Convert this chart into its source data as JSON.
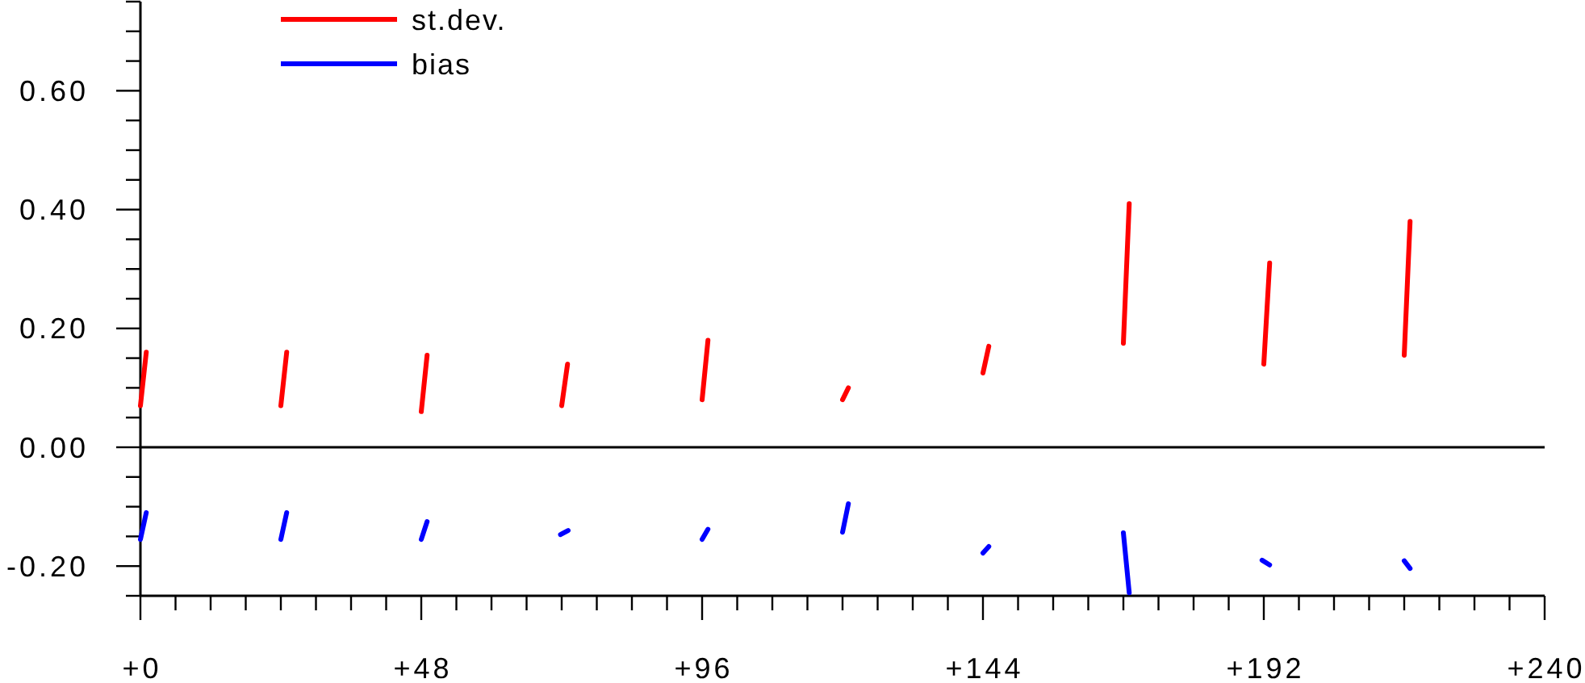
{
  "chart_data": {
    "type": "line",
    "xlim": [
      0,
      240
    ],
    "xticks": [
      {
        "value": 0,
        "label": "+0"
      },
      {
        "value": 6,
        "label": null
      },
      {
        "value": 12,
        "label": null
      },
      {
        "value": 18,
        "label": null
      },
      {
        "value": 24,
        "label": null
      },
      {
        "value": 30,
        "label": null
      },
      {
        "value": 36,
        "label": null
      },
      {
        "value": 42,
        "label": null
      },
      {
        "value": 48,
        "label": "+48"
      },
      {
        "value": 54,
        "label": null
      },
      {
        "value": 60,
        "label": null
      },
      {
        "value": 66,
        "label": null
      },
      {
        "value": 72,
        "label": null
      },
      {
        "value": 78,
        "label": null
      },
      {
        "value": 84,
        "label": null
      },
      {
        "value": 90,
        "label": null
      },
      {
        "value": 96,
        "label": "+96"
      },
      {
        "value": 102,
        "label": null
      },
      {
        "value": 108,
        "label": null
      },
      {
        "value": 114,
        "label": null
      },
      {
        "value": 120,
        "label": null
      },
      {
        "value": 126,
        "label": null
      },
      {
        "value": 132,
        "label": null
      },
      {
        "value": 138,
        "label": null
      },
      {
        "value": 144,
        "label": "+144"
      },
      {
        "value": 150,
        "label": null
      },
      {
        "value": 156,
        "label": null
      },
      {
        "value": 162,
        "label": null
      },
      {
        "value": 168,
        "label": null
      },
      {
        "value": 174,
        "label": null
      },
      {
        "value": 180,
        "label": null
      },
      {
        "value": 186,
        "label": null
      },
      {
        "value": 192,
        "label": "+192"
      },
      {
        "value": 198,
        "label": null
      },
      {
        "value": 204,
        "label": null
      },
      {
        "value": 210,
        "label": null
      },
      {
        "value": 216,
        "label": null
      },
      {
        "value": 222,
        "label": null
      },
      {
        "value": 228,
        "label": null
      },
      {
        "value": 234,
        "label": null
      },
      {
        "value": 240,
        "label": "+240"
      }
    ],
    "ylim": [
      -0.25,
      0.75
    ],
    "yticks": [
      {
        "value": -0.25,
        "label": null
      },
      {
        "value": -0.2,
        "label": "-0.20"
      },
      {
        "value": -0.15,
        "label": null
      },
      {
        "value": -0.1,
        "label": null
      },
      {
        "value": -0.05,
        "label": null
      },
      {
        "value": 0,
        "label": "0.00"
      },
      {
        "value": 0.05,
        "label": null
      },
      {
        "value": 0.1,
        "label": null
      },
      {
        "value": 0.15,
        "label": null
      },
      {
        "value": 0.2,
        "label": "0.20"
      },
      {
        "value": 0.25,
        "label": null
      },
      {
        "value": 0.3,
        "label": null
      },
      {
        "value": 0.35,
        "label": null
      },
      {
        "value": 0.4,
        "label": "0.40"
      },
      {
        "value": 0.45,
        "label": null
      },
      {
        "value": 0.5,
        "label": null
      },
      {
        "value": 0.55,
        "label": null
      },
      {
        "value": 0.6,
        "label": "0.60"
      },
      {
        "value": 0.65,
        "label": null
      },
      {
        "value": 0.7,
        "label": null
      },
      {
        "value": 0.75,
        "label": null
      }
    ],
    "legend": "top left",
    "ref_lines": [
      {
        "axis": "y",
        "value": 0,
        "color": "#000000"
      }
    ],
    "series": [
      {
        "name": "st.dev.",
        "color": "#ff0000",
        "x": [
          0,
          1,
          12,
          24,
          25,
          36,
          48,
          49,
          60,
          72,
          73,
          84,
          96,
          97,
          108,
          120,
          121,
          132,
          144,
          145,
          156,
          168,
          169,
          180,
          192,
          193,
          204,
          216,
          217
        ],
        "values": [
          0.07,
          0.16,
          null,
          0.07,
          0.16,
          null,
          0.06,
          0.155,
          null,
          0.07,
          0.14,
          null,
          0.08,
          0.18,
          null,
          0.08,
          0.1,
          null,
          0.125,
          0.17,
          null,
          0.175,
          0.41,
          null,
          0.14,
          0.31,
          null,
          0.155,
          0.38
        ]
      },
      {
        "name": "bias",
        "color": "#0000ff",
        "x": [
          0,
          1,
          12,
          24,
          25,
          36,
          48,
          49,
          60,
          71.8,
          73.1,
          84,
          96,
          97,
          108,
          120,
          121,
          132,
          144,
          145,
          156,
          168,
          169,
          180,
          191.7,
          193,
          204,
          216,
          217
        ],
        "values": [
          -0.155,
          -0.11,
          null,
          -0.155,
          -0.11,
          null,
          -0.155,
          -0.125,
          null,
          -0.147,
          -0.14,
          null,
          -0.155,
          -0.138,
          null,
          -0.143,
          -0.095,
          null,
          -0.178,
          -0.167,
          null,
          -0.144,
          -0.245,
          null,
          -0.19,
          -0.198,
          null,
          -0.191,
          -0.204
        ]
      }
    ]
  }
}
